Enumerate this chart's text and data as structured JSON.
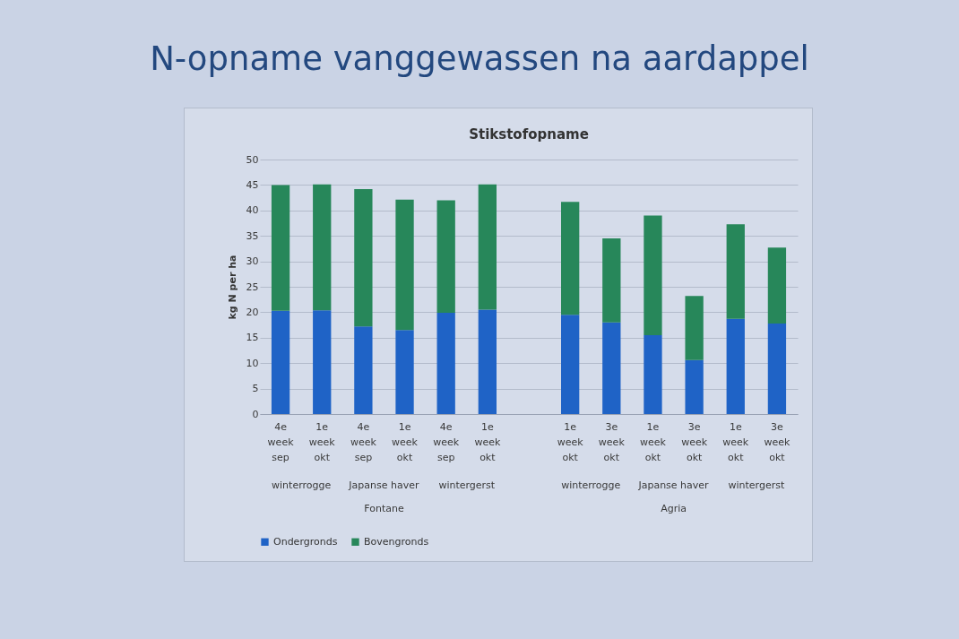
{
  "chart_data": {
    "type": "bar",
    "title": "N-opname vanggewassen na aardappel",
    "subtitle": "Stikstofopname",
    "ylabel": "kg N per ha",
    "categories": [
      "4e week sep",
      "1e week okt",
      "4e week sep",
      "1e week okt",
      "4e week sep",
      "1e week okt",
      null,
      "1e week okt",
      "3e week okt",
      "1e week okt",
      "3e week okt",
      "1e week okt",
      "3e week okt"
    ],
    "series": [
      {
        "name": "Ondergronds",
        "color": "#1f63c6",
        "values": [
          20.3,
          20.4,
          17.2,
          16.5,
          19.9,
          20.5,
          null,
          19.5,
          18.0,
          15.5,
          10.6,
          18.7,
          17.8
        ]
      },
      {
        "name": "Bovengronds",
        "color": "#27875a",
        "values": [
          24.7,
          24.7,
          27.0,
          25.6,
          22.1,
          24.6,
          null,
          22.2,
          16.5,
          23.5,
          12.6,
          18.6,
          14.9
        ]
      }
    ],
    "stacked": true,
    "ylim": [
      0,
      50
    ],
    "yticks": [
      0,
      5,
      10,
      15,
      20,
      25,
      30,
      35,
      40,
      45,
      50
    ],
    "grid": "y",
    "legend": "bottom",
    "annotations": [
      "winterrogge",
      "Japanse haver",
      "wintergerst",
      "winterrogge",
      "Japanse haver",
      "wintergerst",
      "Fontane",
      "Agria"
    ]
  }
}
